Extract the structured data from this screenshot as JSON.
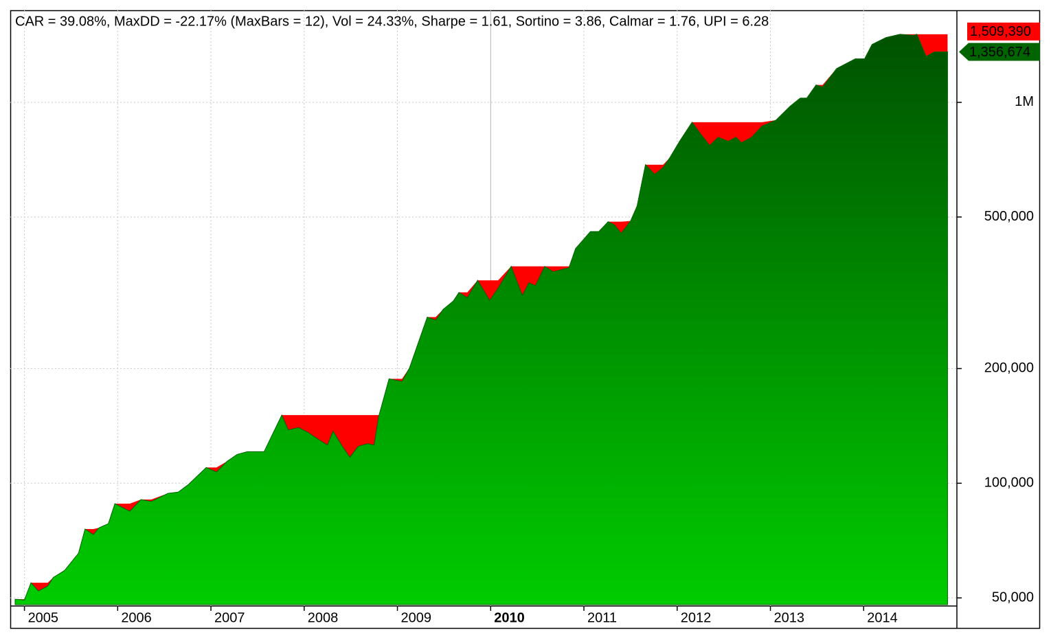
{
  "chart_data": {
    "type": "area",
    "title": "CAR = 39.08%, MaxDD = -22.17% (MaxBars = 12), Vol = 24.33%, Sharpe = 1.61, Sortino = 3.86, Calmar = 1.76, UPI = 6.28",
    "log_scale": true,
    "grid": true,
    "xlim": [
      2004.9,
      2015.0
    ],
    "xticks": [
      2005,
      2006,
      2007,
      2008,
      2009,
      2010,
      2011,
      2012,
      2013,
      2014
    ],
    "ylim": [
      48000,
      1730000
    ],
    "yticks": [
      {
        "value": 50000,
        "label": "50,000"
      },
      {
        "value": 100000,
        "label": "100,000"
      },
      {
        "value": 200000,
        "label": "200,000"
      },
      {
        "value": 500000,
        "label": "500,000"
      },
      {
        "value": 1000000,
        "label": "1M"
      }
    ],
    "x": [
      2004.9,
      2005.0,
      2005.07,
      2005.15,
      2005.25,
      2005.31,
      2005.43,
      2005.58,
      2005.65,
      2005.74,
      2005.8,
      2005.9,
      2005.97,
      2006.13,
      2006.25,
      2006.36,
      2006.54,
      2006.65,
      2006.76,
      2006.95,
      2007.06,
      2007.17,
      2007.28,
      2007.39,
      2007.57,
      2007.76,
      2007.83,
      2007.94,
      2008.04,
      2008.16,
      2008.25,
      2008.31,
      2008.4,
      2008.49,
      2008.58,
      2008.68,
      2008.75,
      2008.8,
      2008.91,
      2009.05,
      2009.13,
      2009.32,
      2009.41,
      2009.49,
      2009.6,
      2009.66,
      2009.75,
      2009.86,
      2009.99,
      2010.08,
      2010.22,
      2010.34,
      2010.41,
      2010.48,
      2010.58,
      2010.67,
      2010.84,
      2010.91,
      2011.07,
      2011.16,
      2011.26,
      2011.33,
      2011.4,
      2011.5,
      2011.57,
      2011.66,
      2011.76,
      2011.85,
      2011.92,
      2012.03,
      2012.16,
      2012.25,
      2012.35,
      2012.44,
      2012.55,
      2012.63,
      2012.69,
      2012.8,
      2012.91,
      2013.06,
      2013.21,
      2013.32,
      2013.39,
      2013.49,
      2013.56,
      2013.71,
      2013.91,
      2014.01,
      2014.09,
      2014.24,
      2014.39,
      2014.54,
      2014.57,
      2014.67,
      2014.76,
      2014.9
    ],
    "series": [
      {
        "color": "#ff0000",
        "last_value_label": "1,509,390",
        "values": [
          49600,
          49600,
          54800,
          54800,
          54800,
          56600,
          59000,
          65500,
          75800,
          75800,
          76400,
          78300,
          88400,
          88400,
          90600,
          90600,
          94100,
          94800,
          99300,
          110000,
          110000,
          114000,
          119000,
          121000,
          121000,
          151000,
          151000,
          151000,
          151000,
          151000,
          151000,
          151000,
          151000,
          151000,
          151000,
          151000,
          151000,
          151000,
          188000,
          188000,
          201000,
          273000,
          273000,
          286000,
          301000,
          317000,
          317000,
          341000,
          341000,
          341000,
          371000,
          371000,
          371000,
          371000,
          371000,
          371000,
          371000,
          413000,
          458000,
          458000,
          486000,
          486000,
          486000,
          488000,
          534000,
          686000,
          686000,
          686000,
          715000,
          793000,
          887000,
          887000,
          887000,
          887000,
          887000,
          887000,
          887000,
          887000,
          887000,
          898000,
          976000,
          1026000,
          1026000,
          1111000,
          1111000,
          1227000,
          1301000,
          1301000,
          1419000,
          1480000,
          1509390,
          1509390,
          1509390,
          1509390,
          1509390,
          1509390
        ]
      },
      {
        "color": "#006400",
        "last_value_label": "1,356,674",
        "values": [
          49600,
          49380,
          54800,
          52100,
          53700,
          56600,
          59000,
          65500,
          75800,
          73300,
          76400,
          78300,
          88400,
          84400,
          90600,
          89500,
          94100,
          94800,
          99300,
          110000,
          107000,
          114000,
          119000,
          121000,
          121000,
          151000,
          138000,
          140000,
          136000,
          130000,
          126000,
          137000,
          126000,
          117000,
          125000,
          127000,
          126000,
          150000,
          188000,
          185000,
          201000,
          273000,
          268000,
          286000,
          301000,
          317000,
          307000,
          341000,
          302000,
          325000,
          371000,
          311000,
          336000,
          330000,
          371000,
          359000,
          368000,
          413000,
          458000,
          458000,
          486000,
          476000,
          453000,
          488000,
          534000,
          686000,
          647000,
          674000,
          715000,
          793000,
          887000,
          827000,
          770000,
          810000,
          790000,
          810000,
          783000,
          810000,
          866000,
          898000,
          976000,
          1026000,
          1026000,
          1111000,
          1097000,
          1227000,
          1301000,
          1301000,
          1419000,
          1480000,
          1509390,
          1498000,
          1509390,
          1320000,
          1356674,
          1356674
        ]
      }
    ]
  }
}
